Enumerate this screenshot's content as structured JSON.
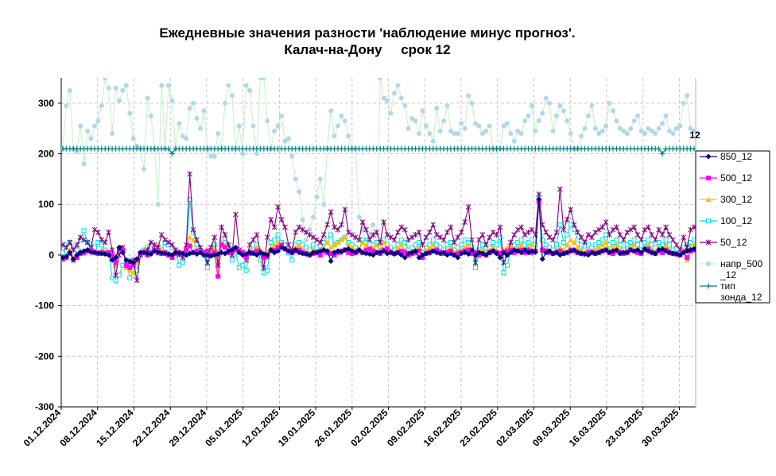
{
  "chart_data": {
    "type": "line",
    "title_line1": "Ежедневные значения разности 'наблюдение минус прогноз'.",
    "title_line2": "Калач-на-Дону     срок 12",
    "xlabel": "",
    "ylabel": "",
    "ylim": [
      -300,
      350
    ],
    "yticks": [
      "-300",
      "-200",
      "-100",
      "0",
      "100",
      "200",
      "300"
    ],
    "xticks": [
      "01.12.2024",
      "08.12.2024",
      "15.12.2024",
      "22.12.2024",
      "29.12.2024",
      "05.01.2025",
      "12.01.2025",
      "19.01.2025",
      "26.01.2025",
      "02.02.2025",
      "09.02.2025",
      "16.02.2025",
      "23.02.2025",
      "02.03.2025",
      "09.03.2025",
      "16.03.2025",
      "23.03.2025",
      "30.03.2025"
    ],
    "grid": true,
    "legend_position": "right",
    "annotation": "12",
    "series": [
      {
        "name": "850_12",
        "color": "#000080",
        "marker": "diamond",
        "values": [
          -5,
          -3,
          5,
          -8,
          0,
          5,
          8,
          10,
          6,
          5,
          4,
          3,
          2,
          0,
          -10,
          -5,
          15,
          5,
          -10,
          -12,
          -15,
          -8,
          5,
          5,
          3,
          2,
          8,
          6,
          4,
          3,
          2,
          0,
          5,
          4,
          3,
          0,
          3,
          5,
          2,
          5,
          0,
          0,
          -2,
          0,
          2,
          5,
          3,
          8,
          10,
          15,
          5,
          0,
          2,
          5,
          3,
          0,
          5,
          2,
          0,
          10,
          5,
          8,
          15,
          12,
          8,
          5,
          10,
          5,
          3,
          2,
          0,
          5,
          5,
          8,
          10,
          8,
          -12,
          5,
          8,
          6,
          10,
          12,
          8,
          5,
          10,
          5,
          3,
          2,
          0,
          5,
          5,
          8,
          3,
          5,
          2,
          5,
          0,
          -5,
          3,
          5,
          8,
          -5,
          0,
          3,
          5,
          8,
          5,
          3,
          5,
          0,
          3,
          0,
          -5,
          3,
          5,
          2,
          10,
          0,
          5,
          3,
          0,
          5,
          8,
          3,
          -5,
          5,
          0,
          5,
          10,
          8,
          5,
          10,
          5,
          8,
          6,
          110,
          -8,
          5,
          8,
          3,
          5,
          0,
          3,
          5,
          8,
          10,
          5,
          3,
          2,
          0,
          5,
          3,
          5,
          8,
          10,
          5,
          8,
          10,
          3,
          5,
          5,
          10,
          8,
          10,
          5,
          12,
          8,
          5,
          3,
          10,
          12,
          8,
          5,
          3,
          2,
          0,
          5,
          8,
          10,
          12
        ]
      },
      {
        "name": "500_12",
        "color": "#ff00ff",
        "marker": "square",
        "values": [
          -8,
          -5,
          3,
          -10,
          -5,
          3,
          5,
          8,
          10,
          5,
          3,
          5,
          3,
          5,
          0,
          -15,
          12,
          10,
          -20,
          -25,
          -20,
          -10,
          3,
          5,
          0,
          5,
          10,
          5,
          3,
          5,
          0,
          -5,
          3,
          5,
          2,
          10,
          18,
          5,
          8,
          5,
          5,
          8,
          0,
          5,
          -42,
          20,
          15,
          5,
          8,
          10,
          8,
          5,
          -5,
          3,
          5,
          8,
          5,
          -5,
          -3,
          8,
          10,
          15,
          20,
          12,
          8,
          5,
          8,
          10,
          5,
          3,
          0,
          3,
          5,
          0,
          8,
          5,
          3,
          0,
          5,
          8,
          10,
          5,
          3,
          5,
          8,
          5,
          10,
          12,
          8,
          5,
          3,
          10,
          12,
          5,
          3,
          5,
          8,
          5,
          0,
          3,
          5,
          8,
          -5,
          3,
          5,
          8,
          10,
          5,
          3,
          5,
          8,
          0,
          3,
          5,
          8,
          10,
          3,
          5,
          0,
          3,
          0,
          5,
          8,
          5,
          3,
          5,
          8,
          10,
          5,
          8,
          10,
          5,
          10,
          5,
          8,
          105,
          10,
          8,
          5,
          3,
          5,
          8,
          3,
          5,
          10,
          8,
          5,
          3,
          2,
          5,
          5,
          3,
          5,
          8,
          10,
          5,
          3,
          8,
          5,
          3,
          5,
          10,
          8,
          5,
          3,
          10,
          12,
          5,
          3,
          8,
          5,
          10,
          5,
          3,
          2,
          0,
          5,
          -5,
          8,
          10
        ]
      },
      {
        "name": "300_12",
        "color": "#ffc000",
        "marker": "triangle",
        "values": [
          -5,
          0,
          10,
          -5,
          0,
          8,
          5,
          10,
          12,
          8,
          5,
          10,
          8,
          5,
          0,
          -20,
          10,
          15,
          -25,
          -30,
          -35,
          -15,
          5,
          10,
          5,
          3,
          15,
          20,
          8,
          5,
          3,
          0,
          10,
          8,
          5,
          15,
          35,
          30,
          10,
          5,
          3,
          10,
          5,
          15,
          -30,
          25,
          20,
          10,
          5,
          15,
          10,
          8,
          0,
          10,
          5,
          15,
          10,
          -10,
          5,
          15,
          20,
          25,
          20,
          15,
          10,
          8,
          15,
          20,
          10,
          5,
          3,
          10,
          8,
          5,
          15,
          25,
          15,
          20,
          25,
          30,
          35,
          20,
          15,
          10,
          8,
          25,
          20,
          10,
          15,
          20,
          10,
          25,
          15,
          10,
          5,
          15,
          20,
          10,
          5,
          8,
          10,
          15,
          0,
          10,
          15,
          20,
          10,
          8,
          5,
          10,
          15,
          5,
          8,
          10,
          15,
          20,
          10,
          5,
          8,
          10,
          3,
          10,
          15,
          10,
          5,
          10,
          15,
          20,
          10,
          15,
          20,
          10,
          15,
          20,
          10,
          110,
          15,
          10,
          8,
          5,
          10,
          15,
          10,
          20,
          30,
          25,
          15,
          10,
          5,
          10,
          8,
          10,
          15,
          20,
          25,
          10,
          15,
          20,
          10,
          5,
          10,
          15,
          20,
          10,
          5,
          15,
          20,
          10,
          5,
          15,
          10,
          20,
          10,
          5,
          3,
          0,
          10,
          -10,
          15,
          20
        ]
      },
      {
        "name": "100_12",
        "color": "#00e0e0",
        "marker": "square-open",
        "values": [
          5,
          20,
          25,
          15,
          10,
          30,
          48,
          25,
          20,
          15,
          25,
          20,
          10,
          5,
          -45,
          -50,
          -40,
          -20,
          -10,
          -45,
          -40,
          -30,
          0,
          10,
          15,
          20,
          10,
          5,
          10,
          25,
          20,
          15,
          5,
          -20,
          -15,
          0,
          110,
          45,
          20,
          10,
          0,
          -25,
          10,
          20,
          -20,
          30,
          25,
          15,
          -10,
          5,
          -25,
          -20,
          -30,
          5,
          10,
          20,
          -10,
          -35,
          -30,
          25,
          30,
          40,
          25,
          20,
          5,
          -10,
          20,
          25,
          20,
          15,
          10,
          20,
          15,
          10,
          25,
          30,
          40,
          20,
          25,
          30,
          35,
          25,
          20,
          15,
          10,
          30,
          25,
          10,
          20,
          25,
          15,
          30,
          20,
          15,
          10,
          20,
          30,
          25,
          10,
          15,
          20,
          25,
          5,
          15,
          20,
          30,
          20,
          15,
          10,
          20,
          25,
          10,
          15,
          20,
          30,
          25,
          15,
          -25,
          10,
          20,
          5,
          15,
          25,
          20,
          35,
          -35,
          -20,
          10,
          20,
          25,
          30,
          20,
          25,
          30,
          20,
          115,
          30,
          20,
          15,
          10,
          20,
          60,
          25,
          40,
          60,
          50,
          30,
          20,
          10,
          20,
          15,
          20,
          25,
          30,
          40,
          20,
          25,
          30,
          20,
          10,
          20,
          25,
          30,
          20,
          10,
          25,
          30,
          20,
          15,
          25,
          20,
          30,
          20,
          10,
          5,
          0,
          15,
          20,
          25,
          30
        ]
      },
      {
        "name": "50_12",
        "color": "#800080",
        "marker": "star",
        "values": [
          20,
          15,
          25,
          10,
          20,
          35,
          30,
          25,
          15,
          50,
          45,
          30,
          25,
          45,
          10,
          -40,
          0,
          15,
          -20,
          -15,
          -10,
          -50,
          0,
          5,
          10,
          25,
          20,
          15,
          40,
          30,
          25,
          20,
          10,
          0,
          -5,
          20,
          160,
          50,
          30,
          15,
          5,
          -15,
          15,
          35,
          -20,
          55,
          40,
          20,
          0,
          80,
          10,
          5,
          -10,
          20,
          30,
          40,
          5,
          -25,
          35,
          70,
          55,
          95,
          70,
          55,
          20,
          10,
          45,
          55,
          50,
          45,
          40,
          35,
          30,
          25,
          40,
          60,
          85,
          55,
          50,
          60,
          90,
          45,
          40,
          35,
          30,
          65,
          50,
          30,
          40,
          45,
          25,
          65,
          40,
          35,
          30,
          45,
          55,
          50,
          30,
          35,
          40,
          45,
          20,
          35,
          45,
          60,
          40,
          35,
          30,
          45,
          55,
          25,
          35,
          45,
          65,
          95,
          30,
          -15,
          30,
          40,
          20,
          35,
          45,
          40,
          55,
          -15,
          0,
          25,
          40,
          50,
          55,
          40,
          45,
          50,
          40,
          120,
          60,
          45,
          35,
          30,
          45,
          130,
          50,
          70,
          90,
          60,
          45,
          35,
          25,
          40,
          35,
          45,
          50,
          55,
          65,
          40,
          50,
          55,
          40,
          30,
          45,
          50,
          55,
          40,
          30,
          50,
          55,
          40,
          30,
          50,
          40,
          55,
          40,
          30,
          20,
          10,
          35,
          15,
          50,
          55
        ]
      },
      {
        "name": "напр_500_12",
        "color": "#b0d8e8",
        "marker": "circle",
        "line_color": "#c6efc6",
        "values": [
          210,
          295,
          325,
          210,
          205,
          255,
          180,
          245,
          230,
          255,
          265,
          295,
          350,
          330,
          240,
          330,
          305,
          325,
          335,
          280,
          230,
          215,
          210,
          170,
          310,
          275,
          210,
          100,
          335,
          210,
          335,
          305,
          210,
          260,
          235,
          230,
          290,
          300,
          270,
          250,
          285,
          210,
          195,
          195,
          240,
          210,
          300,
          335,
          315,
          210,
          255,
          200,
          335,
          325,
          255,
          200,
          350,
          350,
          265,
          210,
          245,
          255,
          275,
          225,
          230,
          195,
          150,
          125,
          70,
          30,
          50,
          75,
          115,
          150,
          100,
          210,
          285,
          235,
          255,
          275,
          265,
          235,
          210,
          210,
          75,
          50,
          30,
          40,
          60,
          20,
          350,
          310,
          305,
          280,
          320,
          335,
          310,
          295,
          250,
          270,
          265,
          240,
          285,
          255,
          240,
          225,
          290,
          245,
          265,
          295,
          245,
          240,
          240,
          260,
          250,
          315,
          300,
          260,
          255,
          240,
          245,
          255,
          210,
          210,
          210,
          255,
          260,
          240,
          225,
          245,
          240,
          265,
          275,
          295,
          245,
          265,
          280,
          310,
          300,
          245,
          275,
          295,
          285,
          265,
          240,
          210,
          210,
          235,
          250,
          275,
          295,
          250,
          240,
          245,
          255,
          300,
          285,
          265,
          250,
          245,
          240,
          250,
          265,
          275,
          245,
          240,
          250,
          245,
          240,
          250,
          260,
          275,
          245,
          240,
          250,
          255,
          300,
          315,
          250,
          245
        ]
      },
      {
        "name": "тип зонда_12",
        "color": "#008080",
        "marker": "plus",
        "values": [
          210,
          210,
          210,
          210,
          210,
          210,
          210,
          210,
          210,
          210,
          210,
          210,
          210,
          210,
          210,
          210,
          210,
          210,
          210,
          210,
          210,
          210,
          210,
          210,
          210,
          210,
          210,
          210,
          210,
          210,
          210,
          200,
          210,
          210,
          210,
          210,
          210,
          210,
          210,
          210,
          210,
          210,
          210,
          210,
          210,
          210,
          210,
          210,
          210,
          210,
          210,
          210,
          210,
          210,
          210,
          210,
          210,
          210,
          210,
          210,
          210,
          210,
          210,
          210,
          210,
          210,
          210,
          210,
          210,
          210,
          210,
          210,
          210,
          210,
          210,
          210,
          210,
          210,
          210,
          210,
          210,
          210,
          210,
          210,
          210,
          210,
          210,
          210,
          210,
          210,
          210,
          210,
          210,
          210,
          210,
          210,
          210,
          210,
          210,
          210,
          210,
          210,
          210,
          210,
          210,
          210,
          210,
          210,
          210,
          210,
          210,
          210,
          210,
          210,
          210,
          210,
          210,
          210,
          210,
          210,
          210,
          210,
          210,
          210,
          210,
          210,
          210,
          210,
          210,
          210,
          210,
          210,
          210,
          210,
          210,
          210,
          210,
          210,
          210,
          210,
          210,
          210,
          210,
          210,
          210,
          210,
          210,
          210,
          210,
          210,
          210,
          210,
          210,
          210,
          210,
          210,
          210,
          210,
          210,
          210,
          210,
          210,
          210,
          210,
          210,
          210,
          210,
          210,
          210,
          210,
          200,
          210,
          210,
          210,
          210,
          210,
          210,
          210,
          210,
          210
        ]
      }
    ]
  }
}
